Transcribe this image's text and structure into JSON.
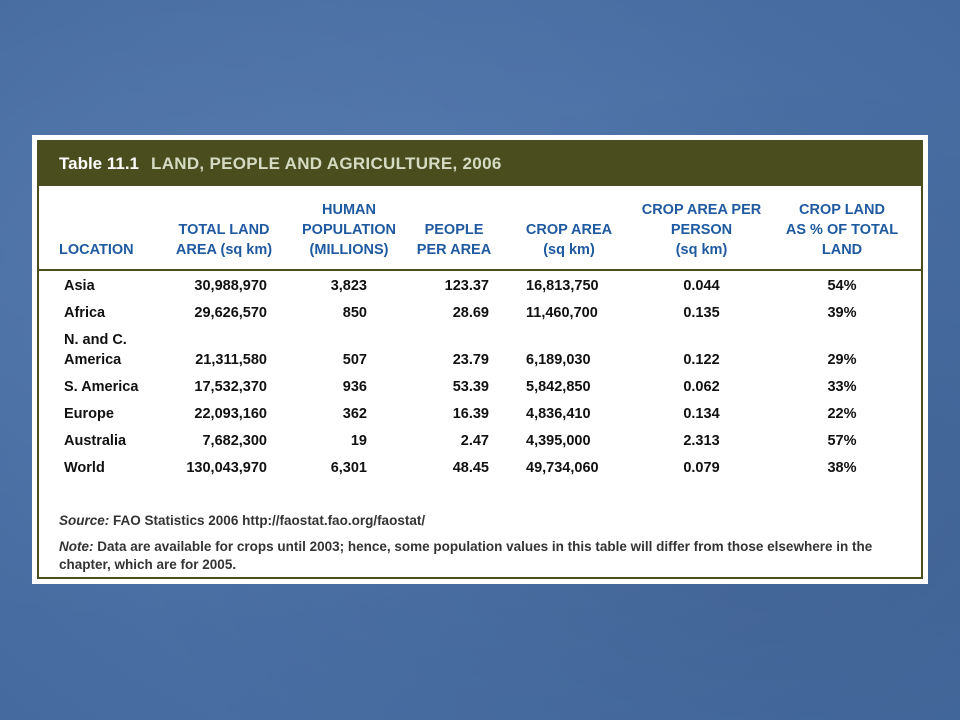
{
  "table": {
    "number": "Table 11.1",
    "title": "LAND, PEOPLE AND AGRICULTURE, 2006",
    "headers": {
      "location": [
        "LOCATION"
      ],
      "total_land": [
        "TOTAL LAND",
        "AREA (sq km)"
      ],
      "population": [
        "HUMAN",
        "POPULATION",
        "(MILLIONS)"
      ],
      "people_per_area": [
        "PEOPLE",
        "PER AREA"
      ],
      "crop_area": [
        "CROP AREA",
        "(sq km)"
      ],
      "crop_per_person": [
        "CROP AREA PER",
        "PERSON",
        "(sq km)"
      ],
      "crop_land_pct": [
        "CROP LAND",
        "AS % OF TOTAL",
        "LAND"
      ]
    },
    "rows": [
      {
        "location": "Asia",
        "total_land": "30,988,970",
        "population": "3,823",
        "people_per_area": "123.37",
        "crop_area": "16,813,750",
        "crop_per_person": "0.044",
        "crop_land_pct": "54%"
      },
      {
        "location": "Africa",
        "total_land": "29,626,570",
        "population": "850",
        "people_per_area": "28.69",
        "crop_area": "11,460,700",
        "crop_per_person": "0.135",
        "crop_land_pct": "39%"
      },
      {
        "location_line1": "N. and C.",
        "location": "America",
        "total_land": "21,311,580",
        "population": "507",
        "people_per_area": "23.79",
        "crop_area": "6,189,030",
        "crop_per_person": "0.122",
        "crop_land_pct": "29%"
      },
      {
        "location": "S. America",
        "total_land": "17,532,370",
        "population": "936",
        "people_per_area": "53.39",
        "crop_area": "5,842,850",
        "crop_per_person": "0.062",
        "crop_land_pct": "33%"
      },
      {
        "location": "Europe",
        "total_land": "22,093,160",
        "population": "362",
        "people_per_area": "16.39",
        "crop_area": "4,836,410",
        "crop_per_person": "0.134",
        "crop_land_pct": "22%"
      },
      {
        "location": "Australia",
        "total_land": "7,682,300",
        "population": "19",
        "people_per_area": "2.47",
        "crop_area": "4,395,000",
        "crop_per_person": "2.313",
        "crop_land_pct": "57%"
      },
      {
        "location": "World",
        "total_land": "130,043,970",
        "population": "6,301",
        "people_per_area": "48.45",
        "crop_area": "49,734,060",
        "crop_per_person": "0.079",
        "crop_land_pct": "38%"
      }
    ],
    "source_label": "Source:",
    "source_text": " FAO Statistics 2006 http://faostat.fao.org/faostat/",
    "note_label": "Note:",
    "note_text": " Data are available for crops until 2003; hence, some population values in this table will differ from those elsewhere in the chapter, which are for 2005."
  }
}
